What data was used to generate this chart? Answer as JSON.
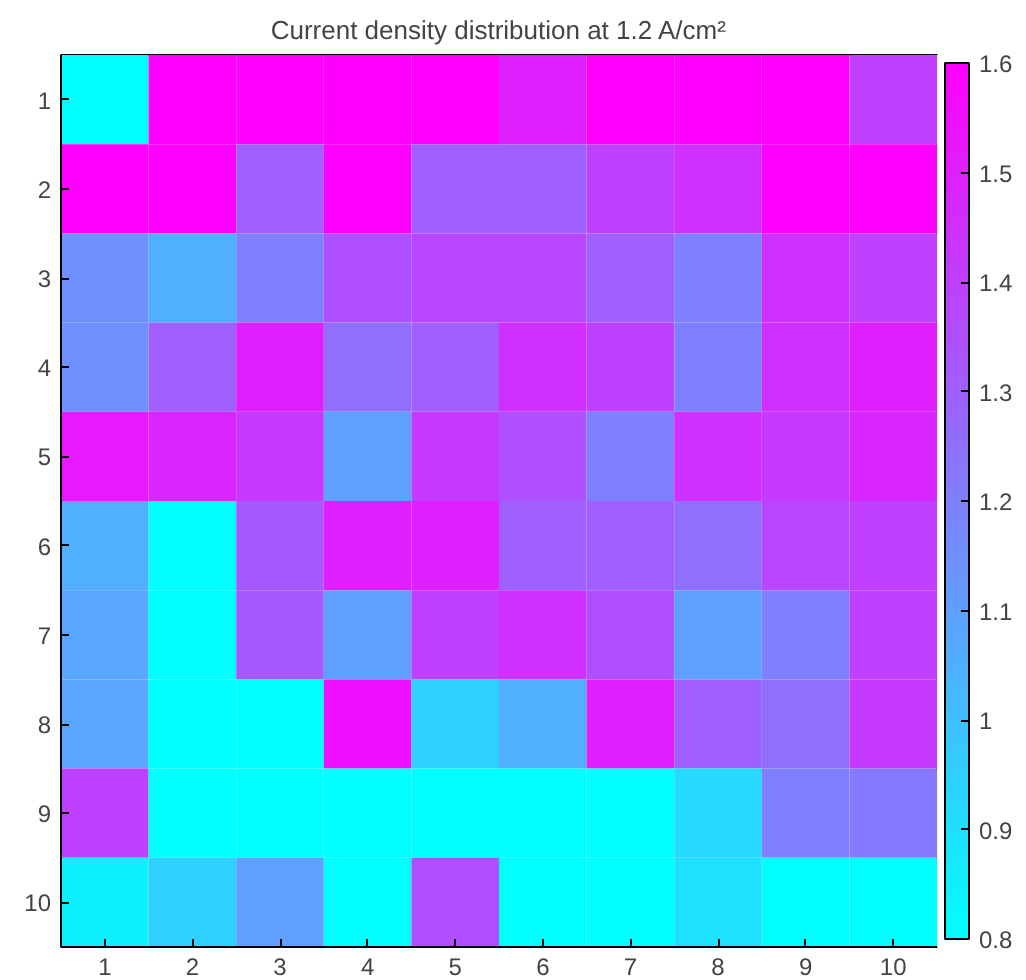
{
  "chart_data": {
    "type": "heatmap",
    "title": "Current density distribution at 1.2 A/cm²",
    "categories": [
      "1",
      "2",
      "3",
      "4",
      "5",
      "6",
      "7",
      "8",
      "9",
      "10"
    ],
    "y_categories": [
      "1",
      "2",
      "3",
      "4",
      "5",
      "6",
      "7",
      "8",
      "9",
      "10"
    ],
    "cells": [
      [
        0.8,
        1.6,
        1.6,
        1.6,
        1.6,
        1.5,
        1.6,
        1.6,
        1.6,
        1.4
      ],
      [
        1.6,
        1.6,
        1.3,
        1.6,
        1.3,
        1.3,
        1.4,
        1.45,
        1.6,
        1.6
      ],
      [
        1.15,
        1.05,
        1.2,
        1.35,
        1.38,
        1.38,
        1.3,
        1.2,
        1.45,
        1.4
      ],
      [
        1.15,
        1.3,
        1.5,
        1.25,
        1.3,
        1.45,
        1.4,
        1.2,
        1.45,
        1.5
      ],
      [
        1.52,
        1.48,
        1.42,
        1.1,
        1.42,
        1.35,
        1.2,
        1.45,
        1.42,
        1.48
      ],
      [
        1.05,
        0.8,
        1.32,
        1.5,
        1.5,
        1.3,
        1.3,
        1.25,
        1.38,
        1.4
      ],
      [
        1.08,
        0.8,
        1.32,
        1.1,
        1.4,
        1.45,
        1.35,
        1.1,
        1.2,
        1.4
      ],
      [
        1.08,
        0.8,
        0.8,
        1.55,
        0.95,
        1.05,
        1.5,
        1.3,
        1.25,
        1.42
      ],
      [
        1.4,
        0.8,
        0.8,
        0.8,
        0.8,
        0.8,
        0.8,
        0.92,
        1.2,
        1.22
      ],
      [
        0.85,
        0.95,
        1.1,
        0.8,
        1.35,
        0.8,
        0.8,
        0.9,
        0.8,
        0.8
      ]
    ],
    "clim": [
      0.8,
      1.6
    ],
    "cticks": [
      0.8,
      0.9,
      1,
      1.1,
      1.2,
      1.3,
      1.4,
      1.5,
      1.6
    ]
  }
}
